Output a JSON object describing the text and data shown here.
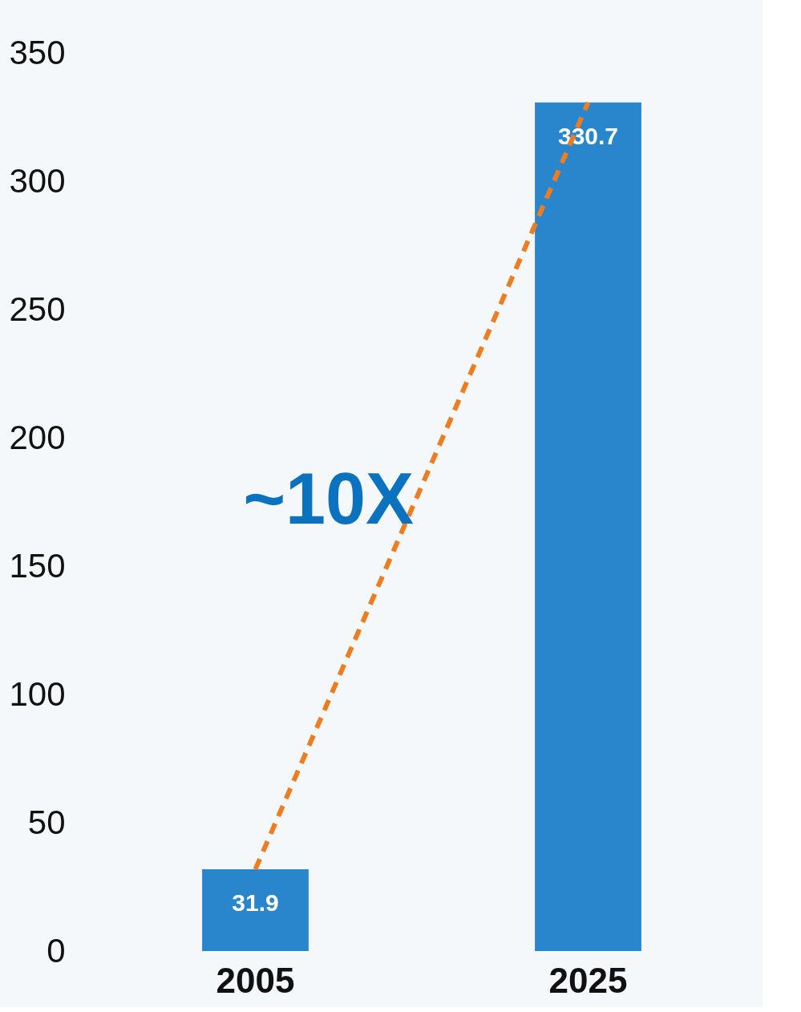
{
  "chart_data": {
    "type": "bar",
    "categories": [
      "2005",
      "2025"
    ],
    "series": [
      {
        "color": "#2a86cc",
        "values": [
          31.9,
          330.7
        ],
        "value_labels": [
          "31.9",
          "330.7"
        ]
      },
      {
        "type": "line",
        "color": "#ee7d22",
        "values": [
          31.9,
          330.7
        ],
        "line_style": "dashed",
        "marker": "none"
      }
    ],
    "ylim": [
      0,
      350
    ],
    "yticks": [
      0,
      50,
      100,
      150,
      200,
      250,
      300,
      350
    ],
    "grid": false,
    "annotations": [
      "~10X"
    ]
  }
}
